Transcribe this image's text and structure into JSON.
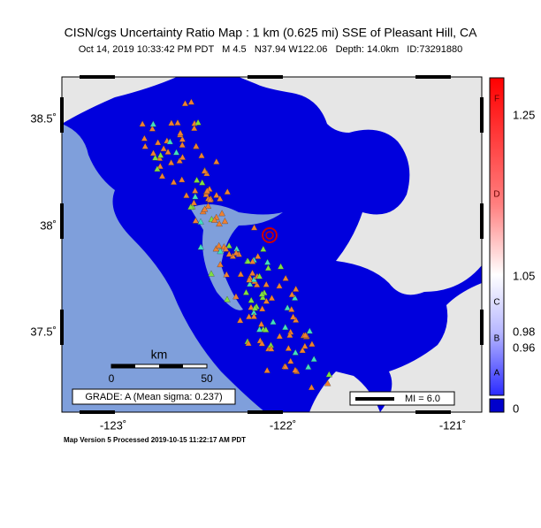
{
  "header": {
    "title": "CISN/cgs Uncertainty Ratio Map : 1 km (0.625 mi) SSE of Pleasant Hill, CA",
    "subtitle": "Oct 14, 2019 10:33:42 PM PDT   M 4.5   N37.94 W122.06   Depth: 14.0km   ID:73291880"
  },
  "map": {
    "lon_labels": [
      "-123˚",
      "-122˚",
      "-121˚"
    ],
    "lat_labels": [
      "38.5˚",
      "38˚",
      "37.5˚"
    ],
    "scale_bar": {
      "unit": "km",
      "labels": [
        "0",
        "50"
      ]
    },
    "grade": "GRADE: A (Mean sigma: 0.237)",
    "legend": "MI = 6.0"
  },
  "color_bar": {
    "grades": [
      "F",
      "D",
      "C",
      "B",
      "A"
    ],
    "ticks": [
      "1.25",
      "1.05",
      "0.98",
      "0.96",
      "0"
    ]
  },
  "footer": "Map Version 5 Processed 2019-10-15 11:22:17 AM PDT"
}
